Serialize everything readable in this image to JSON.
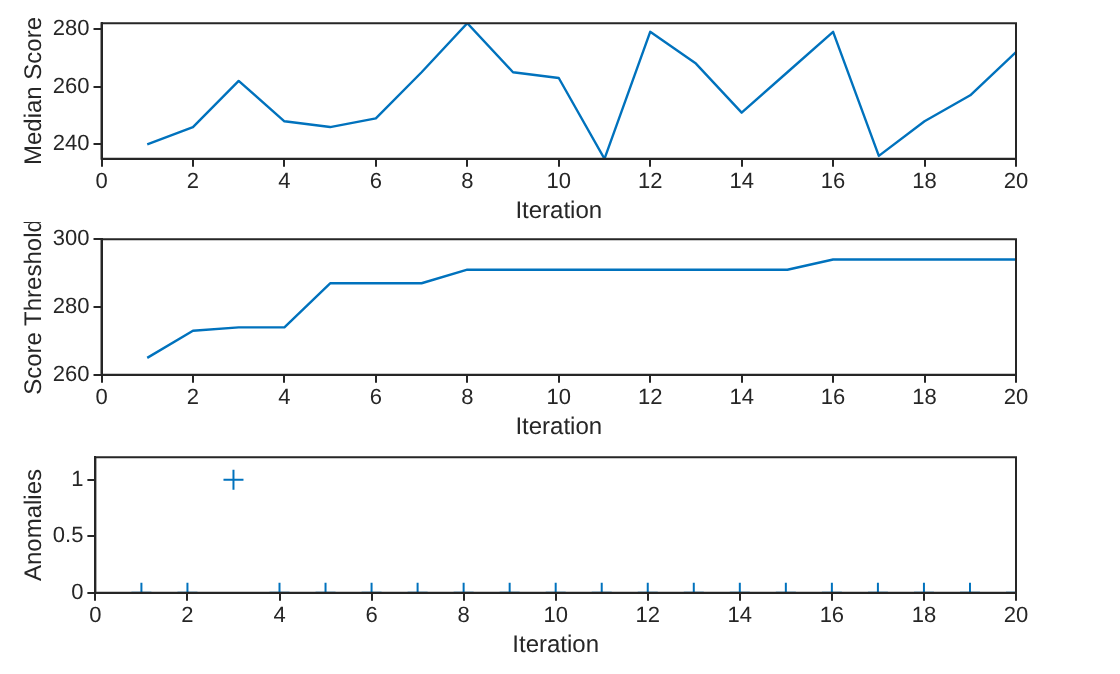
{
  "chart_data": [
    {
      "type": "line",
      "xlabel": "Iteration",
      "ylabel": "Median Score",
      "x": [
        1,
        2,
        3,
        4,
        5,
        6,
        7,
        8,
        9,
        10,
        11,
        12,
        13,
        14,
        15,
        16,
        17,
        18,
        19,
        20
      ],
      "series": [
        {
          "color": "#0072bd",
          "values": [
            240,
            246,
            262,
            248,
            246,
            249,
            265,
            282,
            265,
            263,
            235,
            279,
            268,
            251,
            265,
            279,
            236,
            248,
            257,
            272
          ]
        }
      ],
      "xlim": [
        0,
        20
      ],
      "xticks": [
        0,
        2,
        4,
        6,
        8,
        10,
        12,
        14,
        16,
        18,
        20
      ],
      "ylim": [
        235,
        282
      ],
      "yticks": [
        240,
        260,
        280
      ],
      "grid": false,
      "legend": false,
      "marker": "none"
    },
    {
      "type": "line",
      "xlabel": "Iteration",
      "ylabel": "Score Threshold",
      "x": [
        1,
        2,
        3,
        4,
        5,
        6,
        7,
        8,
        9,
        10,
        11,
        12,
        13,
        14,
        15,
        16,
        17,
        18,
        19,
        20
      ],
      "series": [
        {
          "color": "#0072bd",
          "values": [
            265,
            273,
            274,
            274,
            287,
            287,
            287,
            291,
            291,
            291,
            291,
            291,
            291,
            291,
            291,
            294,
            294,
            294,
            294,
            294
          ]
        }
      ],
      "xlim": [
        0,
        20
      ],
      "xticks": [
        0,
        2,
        4,
        6,
        8,
        10,
        12,
        14,
        16,
        18,
        20
      ],
      "ylim": [
        260,
        300
      ],
      "yticks": [
        260,
        280,
        300
      ],
      "grid": false,
      "legend": false,
      "marker": "none"
    },
    {
      "type": "scatter",
      "xlabel": "Iteration",
      "ylabel": "Anomalies",
      "x": [
        1,
        2,
        3,
        4,
        5,
        6,
        7,
        8,
        9,
        10,
        11,
        12,
        13,
        14,
        15,
        16,
        17,
        18,
        19,
        20
      ],
      "series": [
        {
          "color": "#0072bd",
          "values": [
            0,
            0,
            1,
            0,
            0,
            0,
            0,
            0,
            0,
            0,
            0,
            0,
            0,
            0,
            0,
            0,
            0,
            0,
            0,
            0
          ]
        }
      ],
      "xlim": [
        0,
        20
      ],
      "xticks": [
        0,
        2,
        4,
        6,
        8,
        10,
        12,
        14,
        16,
        18,
        20
      ],
      "ylim": [
        0,
        1.2
      ],
      "yticks": [
        0,
        0.5,
        1
      ],
      "grid": false,
      "legend": false,
      "marker": "cross"
    }
  ]
}
